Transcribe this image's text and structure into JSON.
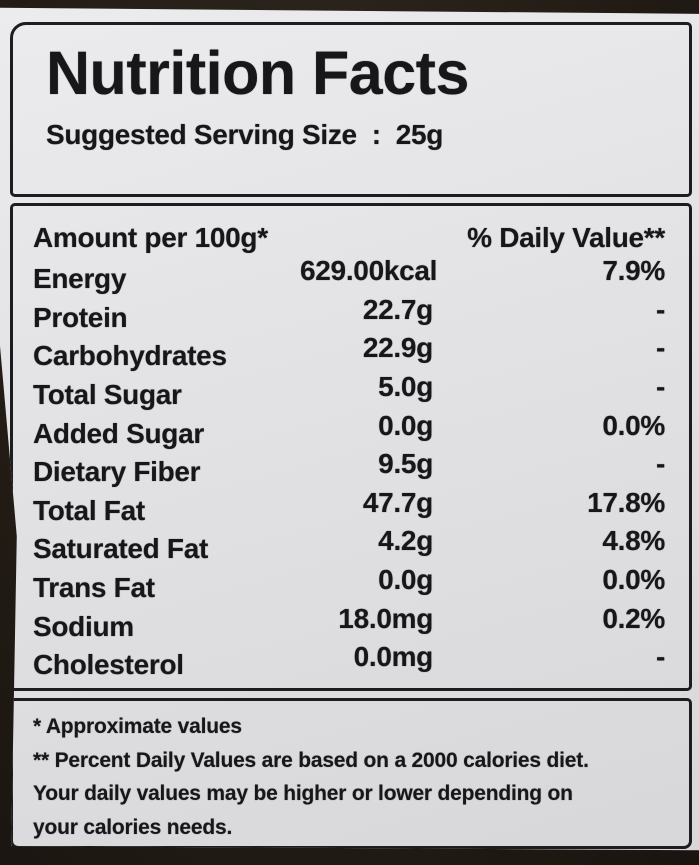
{
  "label": {
    "title": "Nutrition Facts",
    "serving_line": "Suggested Serving Size  :  25g",
    "header": {
      "amount": "Amount per 100g*",
      "daily_value": "% Daily Value**"
    },
    "rows": [
      {
        "name": "Energy",
        "amount": "629.00kcal",
        "dv": "7.9%"
      },
      {
        "name": "Protein",
        "amount": "22.7g",
        "dv": "-"
      },
      {
        "name": "Carbohydrates",
        "amount": "22.9g",
        "dv": "-"
      },
      {
        "name": "Total Sugar",
        "amount": "5.0g",
        "dv": "-"
      },
      {
        "name": "Added Sugar",
        "amount": "0.0g",
        "dv": "0.0%"
      },
      {
        "name": "Dietary Fiber",
        "amount": "9.5g",
        "dv": "-"
      },
      {
        "name": "Total Fat",
        "amount": "47.7g",
        "dv": "17.8%"
      },
      {
        "name": "Saturated Fat",
        "amount": "4.2g",
        "dv": "4.8%"
      },
      {
        "name": "Trans Fat",
        "amount": "0.0g",
        "dv": "0.0%"
      },
      {
        "name": "Sodium",
        "amount": "18.0mg",
        "dv": "0.2%"
      },
      {
        "name": "Cholesterol",
        "amount": "0.0mg",
        "dv": "-"
      }
    ],
    "footnotes": [
      "* Approximate values",
      "** Percent Daily Values are based on a 2000 calories diet.",
      "Your daily values may be higher or lower depending on",
      "your calories needs."
    ],
    "colors": {
      "sticker": "#e3e3e5",
      "ink": "#17171a",
      "package_background": "#241d16"
    }
  }
}
